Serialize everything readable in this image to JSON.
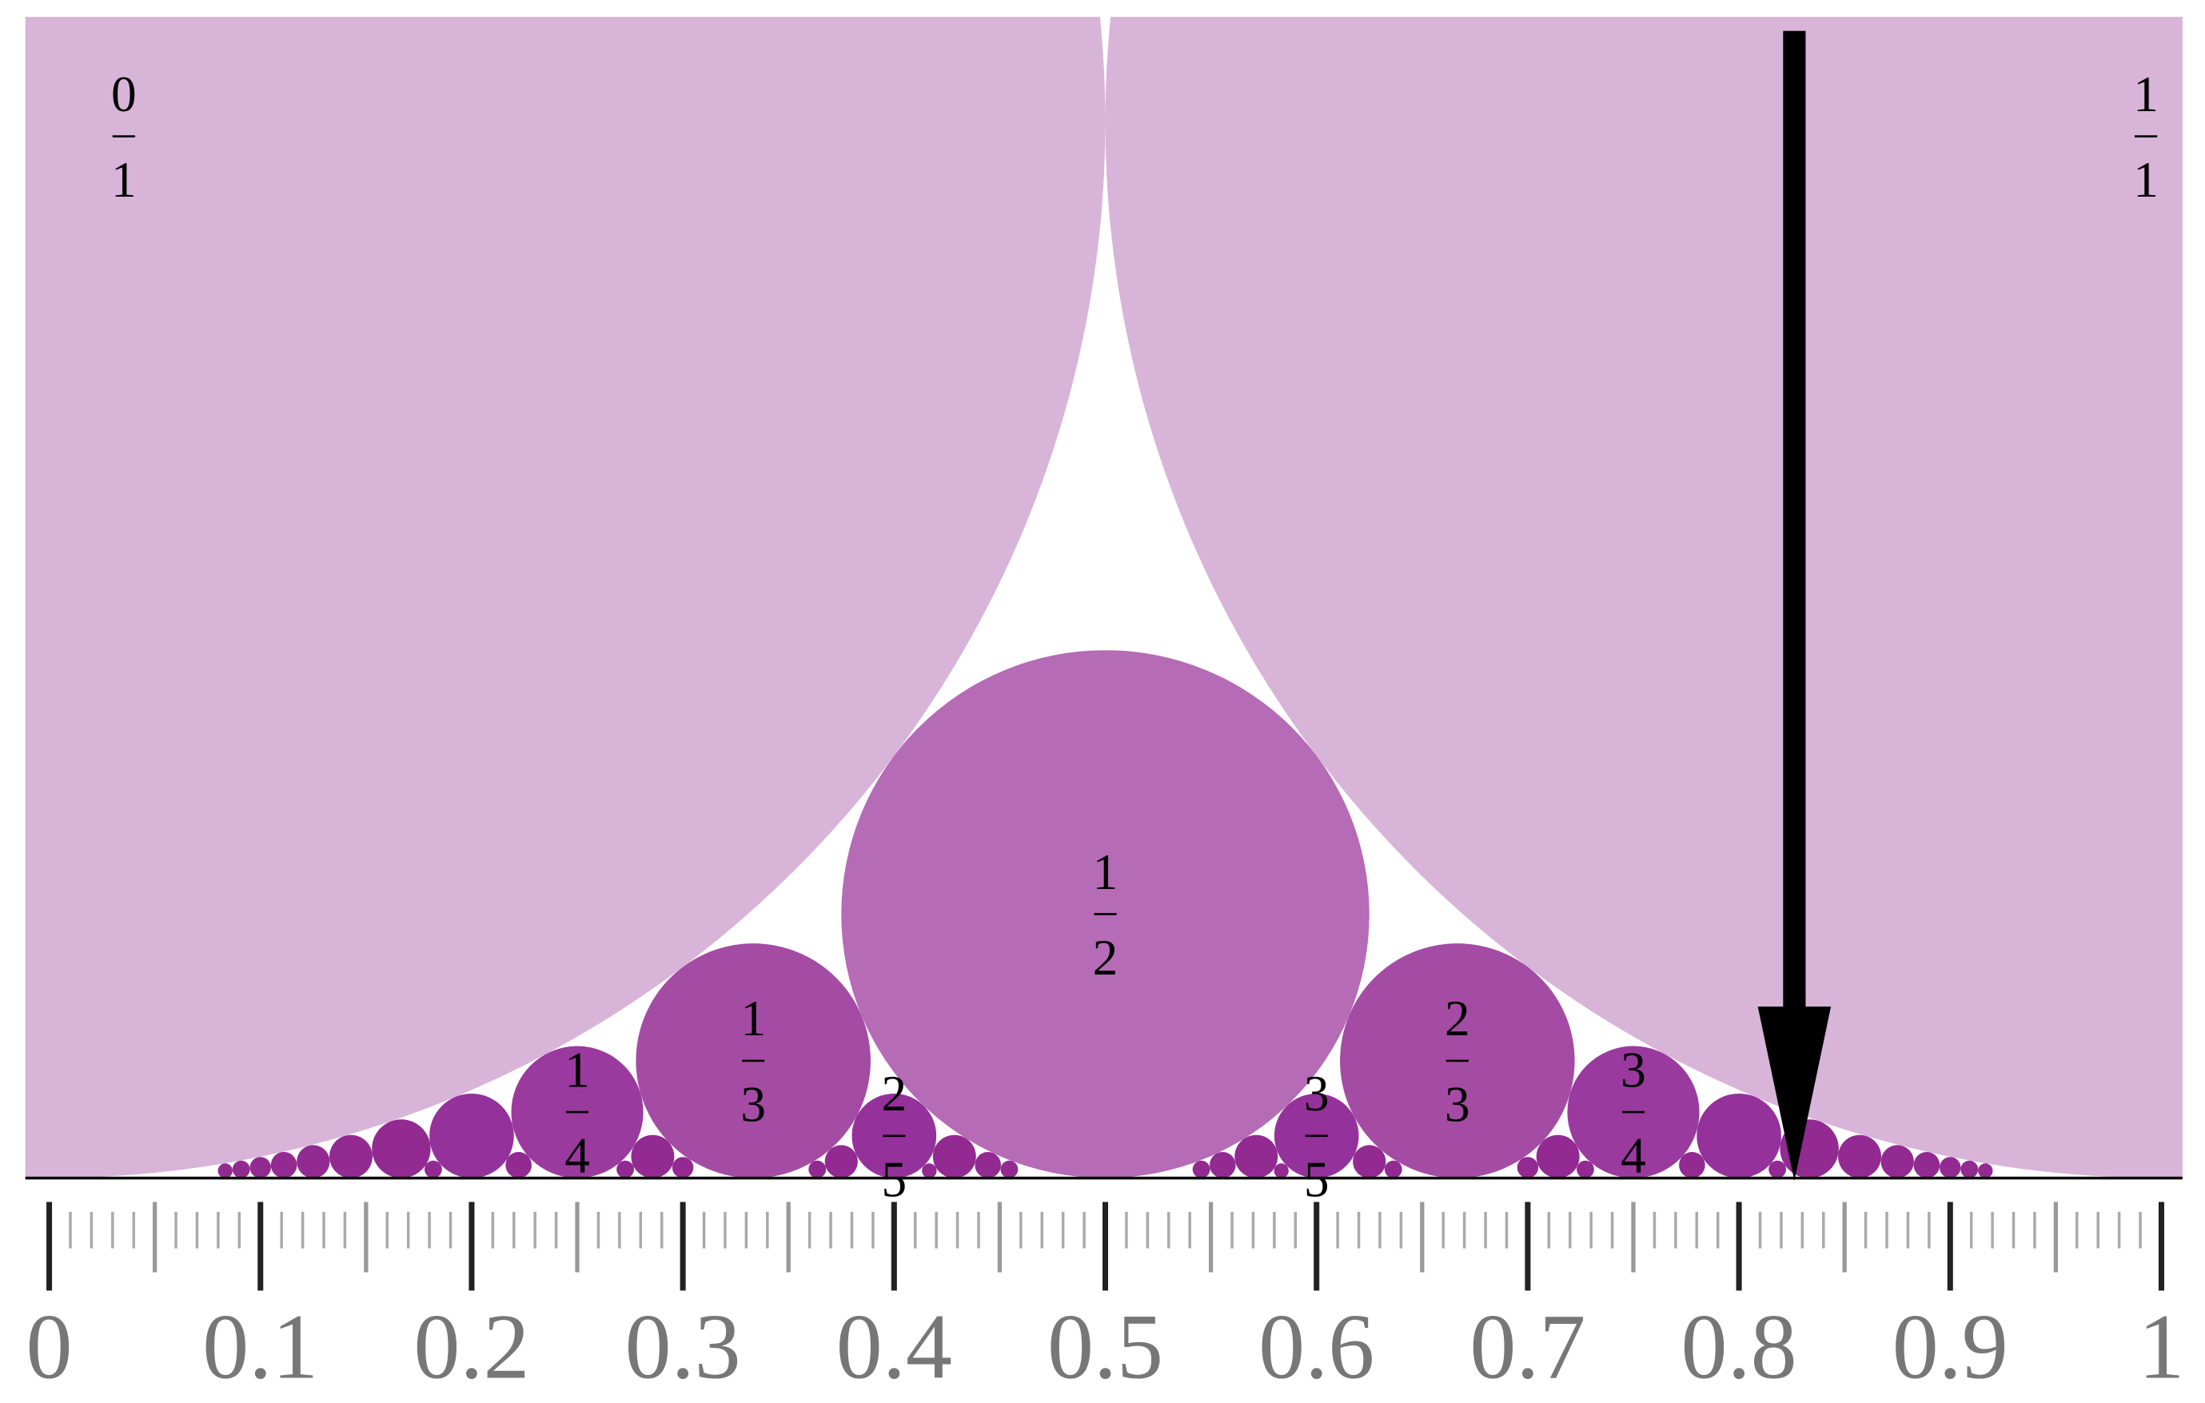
{
  "fractions": [
    {
      "numerator": 0,
      "denominator": 1
    },
    {
      "numerator": 1,
      "denominator": 1
    },
    {
      "numerator": 1,
      "denominator": 2
    },
    {
      "numerator": 1,
      "denominator": 3
    },
    {
      "numerator": 2,
      "denominator": 3
    },
    {
      "numerator": 1,
      "denominator": 4
    },
    {
      "numerator": 3,
      "denominator": 4
    },
    {
      "numerator": 2,
      "denominator": 5
    },
    {
      "numerator": 3,
      "denominator": 5
    }
  ],
  "axis": {
    "ticks": [
      0,
      0.1,
      0.2,
      0.3,
      0.4,
      0.5,
      0.6,
      0.7,
      0.8,
      0.9,
      1
    ]
  }
}
